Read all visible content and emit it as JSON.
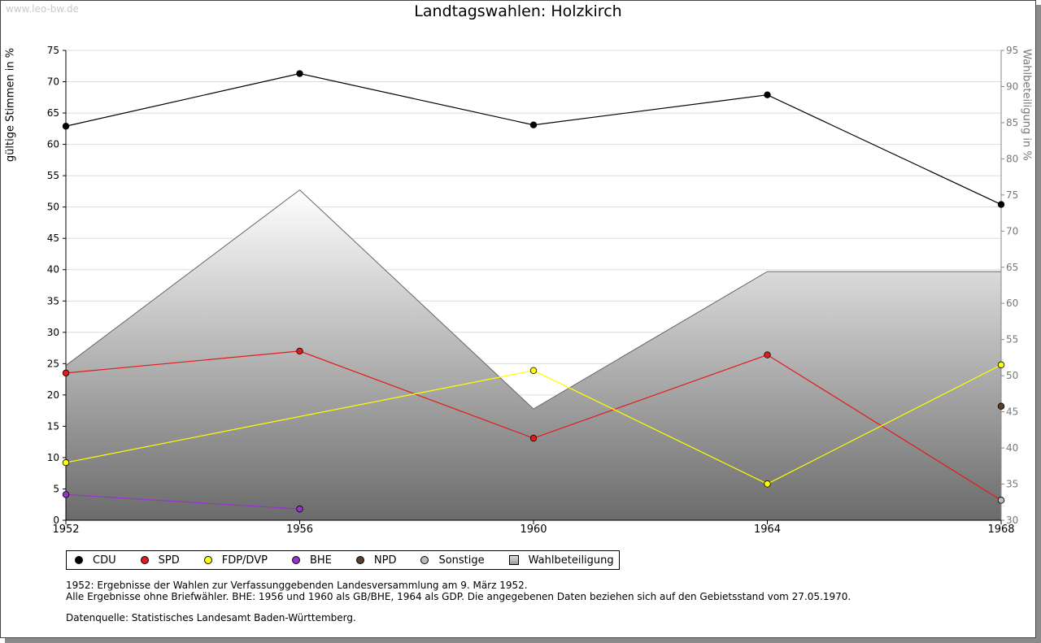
{
  "watermark": "www.leo-bw.de",
  "chart_data": {
    "type": "line",
    "title": "Landtagswahlen: Holzkirch",
    "ylabel": "gültige Stimmen in %",
    "ylabel_right": "Wahlbeteiligung in %",
    "x": [
      "1952",
      "1956",
      "1960",
      "1964",
      "1968"
    ],
    "ylim": [
      0,
      75
    ],
    "ylim_right": [
      30,
      95
    ],
    "yticks": [
      0,
      5,
      10,
      15,
      20,
      25,
      30,
      35,
      40,
      45,
      50,
      55,
      60,
      65,
      70,
      75
    ],
    "yticks_right": [
      30,
      35,
      40,
      45,
      50,
      55,
      60,
      65,
      70,
      75,
      80,
      85,
      90,
      95
    ],
    "grid": true,
    "legend_position": "bottom-left",
    "series": [
      {
        "name": "CDU",
        "color": "#000000",
        "values": [
          62.9,
          71.3,
          63.1,
          67.9,
          50.4
        ]
      },
      {
        "name": "SPD",
        "color": "#e41a1c",
        "values": [
          23.5,
          27.0,
          13.1,
          26.4,
          3.2
        ]
      },
      {
        "name": "FDP/DVP",
        "color": "#ffff00",
        "values": [
          9.2,
          null,
          23.9,
          5.8,
          24.8
        ]
      },
      {
        "name": "BHE",
        "color": "#9933cc",
        "values": [
          4.1,
          1.8,
          null,
          null,
          null
        ]
      },
      {
        "name": "NPD",
        "color": "#5a3e2b",
        "values": [
          null,
          null,
          null,
          null,
          18.2
        ]
      },
      {
        "name": "Sonstige",
        "color": "#bbbbbb",
        "values": [
          null,
          null,
          null,
          null,
          3.2
        ]
      }
    ],
    "area_series": {
      "name": "Wahlbeteiligung",
      "axis": "right",
      "values": [
        51.4,
        75.7,
        45.4,
        64.4,
        64.4
      ]
    }
  },
  "notes": [
    "1952: Ergebnisse der Wahlen zur Verfassunggebenden Landesversammlung am 9. März 1952.",
    "Alle Ergebnisse ohne Briefwähler. BHE: 1956 und 1960 als GB/BHE, 1964 als GDP. Die angegebenen Daten beziehen sich auf den Gebietsstand vom 27.05.1970."
  ],
  "source": "Datenquelle: Statistisches Landesamt Baden-Württemberg."
}
